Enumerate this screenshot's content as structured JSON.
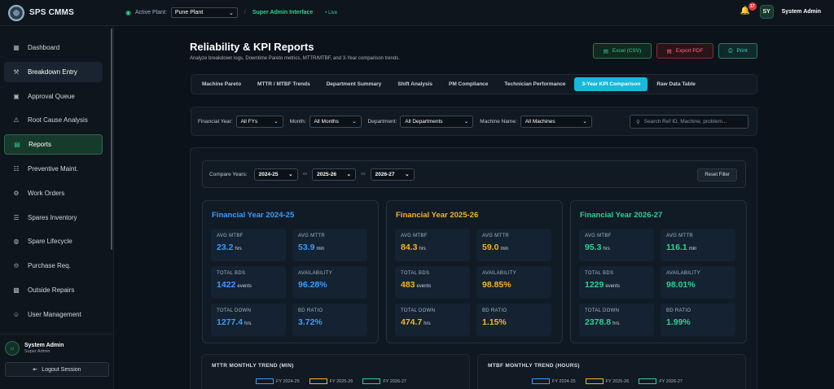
{
  "app": {
    "name": "SPS CMMS"
  },
  "topbar": {
    "plant_label": "Active Plant:",
    "plant_value": "Pune Plant",
    "interface": "Super Admin Interface",
    "live": "• Live",
    "notification_count": "17",
    "user_initials": "SY",
    "user_name": "System Admin"
  },
  "sidebar": {
    "items": [
      {
        "label": "Dashboard",
        "icon": "grid-icon"
      },
      {
        "label": "Breakdown Entry",
        "icon": "wrench-icon"
      },
      {
        "label": "Approval Queue",
        "icon": "clipboard-icon"
      },
      {
        "label": "Root Cause Analysis",
        "icon": "warning-icon"
      },
      {
        "label": "Reports",
        "icon": "report-icon"
      },
      {
        "label": "Preventive Maint.",
        "icon": "calendar-icon"
      },
      {
        "label": "Work Orders",
        "icon": "tool-icon"
      },
      {
        "label": "Spares Inventory",
        "icon": "database-icon"
      },
      {
        "label": "Spare Lifecycle",
        "icon": "compass-icon"
      },
      {
        "label": "Purchase Req.",
        "icon": "cart-icon"
      },
      {
        "label": "Outside Repairs",
        "icon": "truck-icon"
      },
      {
        "label": "User Management",
        "icon": "user-icon"
      }
    ],
    "user_name": "System Admin",
    "user_role": "Super Admin",
    "logout": "Logout Session"
  },
  "page": {
    "title": "Reliability & KPI Reports",
    "subtitle": "Analyze breakdown logs, Downtime Pareto metrics, MTTR/MTBF, and 3-Year comparison trends."
  },
  "actions": {
    "excel": "Excel (CSV)",
    "pdf": "Export PDF",
    "print": "Print"
  },
  "tabs": [
    "Machine Pareto",
    "MTTR / MTBF Trends",
    "Department Summary",
    "Shift Analysis",
    "PM Compliance",
    "Technician Performance",
    "3-Year KPI Comparison",
    "Raw Data Table"
  ],
  "filters": {
    "fy_label": "Financial Year:",
    "fy_value": "All FYs",
    "month_label": "Month:",
    "month_value": "All Months",
    "dept_label": "Department:",
    "dept_value": "All Departments",
    "machine_label": "Machine Name:",
    "machine_value": "All Machines",
    "search_placeholder": "Search Ref ID, Machine, problem..."
  },
  "compare": {
    "label": "Compare Years:",
    "year1": "2024-25",
    "year2": "2025-26",
    "year3": "2026-27",
    "vs": "vs",
    "reset": "Reset Filter"
  },
  "years": [
    {
      "title": "Financial Year 2024-25",
      "color": "#3b9bff",
      "mtbf": "23.2",
      "mttr": "53.9",
      "bds": "1422",
      "availability": "96.28%",
      "down": "1277.4",
      "ratio": "3.72%"
    },
    {
      "title": "Financial Year 2025-26",
      "color": "#f5b324",
      "mtbf": "84.3",
      "mttr": "59.0",
      "bds": "483",
      "availability": "98.85%",
      "down": "474.7",
      "ratio": "1.15%"
    },
    {
      "title": "Financial Year 2026-27",
      "color": "#2ed18e",
      "mtbf": "95.3",
      "mttr": "116.1",
      "bds": "1229",
      "availability": "98.01%",
      "down": "2378.8",
      "ratio": "1.99%"
    }
  ],
  "metric_labels": {
    "mtbf": "AVG MTBF",
    "mttr": "AVG MTTR",
    "bds": "TOTAL BDS",
    "availability": "AVAILABILITY",
    "down": "TOTAL DOWN",
    "ratio": "BD RATIO",
    "hrs": "hrs",
    "min": "min",
    "events": "events"
  },
  "trends": {
    "mttr_title": "MTTR MONTHLY TREND (MIN)",
    "mtbf_title": "MTBF MONTHLY TREND (HOURS)",
    "legend": [
      "FY 2024-25",
      "FY 2025-26",
      "FY 2026-27"
    ]
  }
}
